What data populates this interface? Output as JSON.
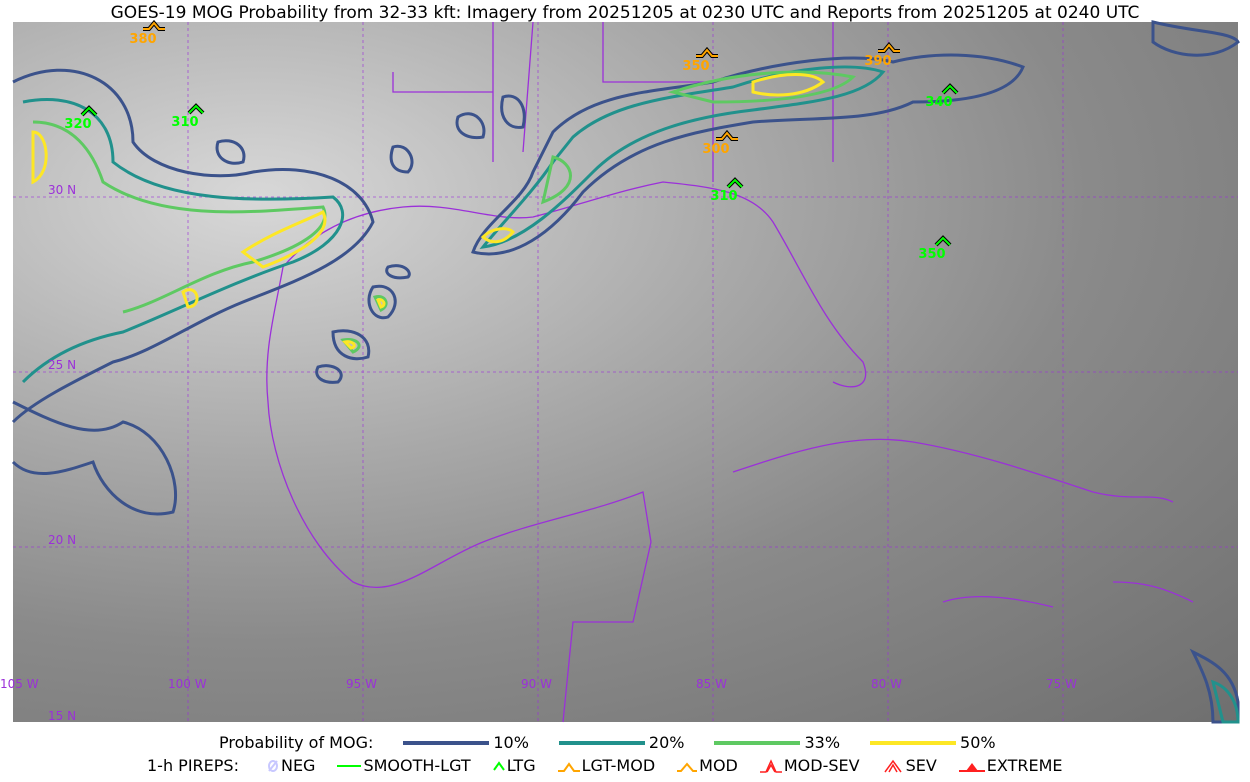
{
  "title": "GOES-19 MOG Probability from 32-33 kft: Imagery from 20251205 at 0230 UTC and Reports from 20251205 at 0240 UTC",
  "map": {
    "latitude_labels": [
      "30 N",
      "25 N",
      "20 N",
      "15 N"
    ],
    "longitude_labels": [
      "105 W",
      "100 W",
      "95 W",
      "90 W",
      "85 W",
      "80 W",
      "75 W"
    ],
    "grid_color": "#9b30d9",
    "coastline_color": "#9b30d9",
    "pireps": [
      {
        "label": "380",
        "type": "LGT-MOD",
        "color": "#ffa500"
      },
      {
        "label": "320",
        "type": "LTG",
        "color": "#00ff00"
      },
      {
        "label": "310",
        "type": "LTG",
        "color": "#00ff00"
      },
      {
        "label": "350",
        "type": "LGT-MOD",
        "color": "#ffa500"
      },
      {
        "label": "300",
        "type": "LGT-MOD",
        "color": "#ffa500"
      },
      {
        "label": "310",
        "type": "LTG",
        "color": "#00ff00"
      },
      {
        "label": "390",
        "type": "LGT-MOD",
        "color": "#ffa500"
      },
      {
        "label": "340",
        "type": "LTG",
        "color": "#00ff00"
      },
      {
        "label": "350",
        "type": "LTG",
        "color": "#00ff00"
      }
    ]
  },
  "legend": {
    "probability_label": "Probability of MOG:",
    "levels": [
      {
        "label": "10%",
        "color": "#3b528b"
      },
      {
        "label": "20%",
        "color": "#21918c"
      },
      {
        "label": "33%",
        "color": "#5ec962"
      },
      {
        "label": "50%",
        "color": "#fde725"
      }
    ],
    "pireps_label": "1-h PIREPS:",
    "pirep_types": [
      {
        "label": "NEG",
        "color": "#c8c8ff"
      },
      {
        "label": "SMOOTH-LGT",
        "color": "#00ff00"
      },
      {
        "label": "LTG",
        "color": "#00ff00"
      },
      {
        "label": "LGT-MOD",
        "color": "#ffa500"
      },
      {
        "label": "MOD",
        "color": "#ffa500"
      },
      {
        "label": "MOD-SEV",
        "color": "#ff0000"
      },
      {
        "label": "SEV",
        "color": "#ff0000"
      },
      {
        "label": "EXTREME",
        "color": "#ff0000"
      }
    ]
  }
}
